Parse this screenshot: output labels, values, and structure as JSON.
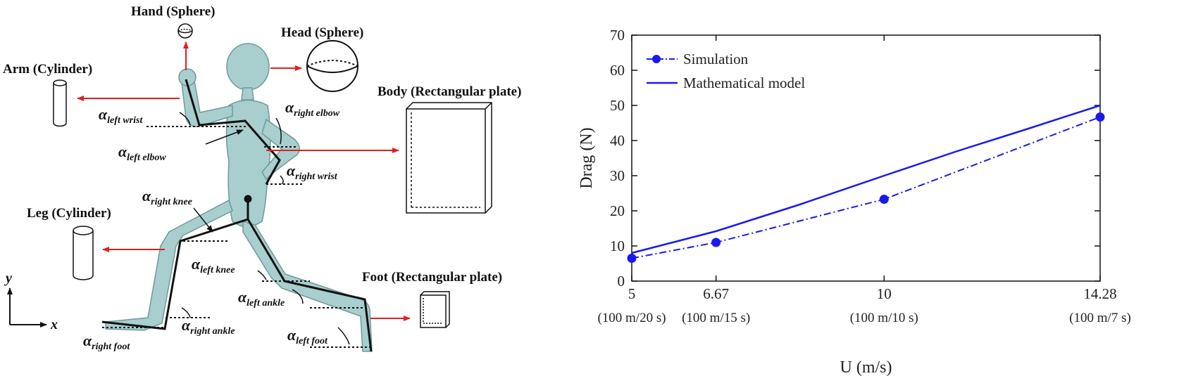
{
  "diagram": {
    "labels": {
      "hand": "Hand (Sphere)",
      "head": "Head (Sphere)",
      "arm": "Arm (Cylinder)",
      "body": "Body (Rectangular plate)",
      "leg": "Leg (Cylinder)",
      "foot": "Foot (Rectangular plate)"
    },
    "angles": {
      "left_wrist": {
        "sym": "α",
        "sub": "left wrist"
      },
      "right_elbow": {
        "sym": "α",
        "sub": "right elbow"
      },
      "left_elbow": {
        "sym": "α",
        "sub": "left elbow"
      },
      "right_wrist": {
        "sym": "α",
        "sub": "right wrist"
      },
      "right_knee": {
        "sym": "α",
        "sub": "right knee"
      },
      "left_knee": {
        "sym": "α",
        "sub": "left knee"
      },
      "left_ankle": {
        "sym": "α",
        "sub": "left ankle"
      },
      "right_ankle": {
        "sym": "α",
        "sub": "right ankle"
      },
      "right_foot": {
        "sym": "α",
        "sub": "right foot"
      },
      "left_foot": {
        "sym": "α",
        "sub": "left foot"
      }
    },
    "axes": {
      "y": "y",
      "x": "x"
    },
    "colors": {
      "arrow": "#e02020",
      "mannequin": "#a8cece",
      "mannequin_edge": "#6f9a9a"
    }
  },
  "chart_data": {
    "type": "line",
    "x": [
      5,
      6.67,
      10,
      14.28
    ],
    "xticklabels": [
      "5",
      "6.67",
      "10",
      "14.28"
    ],
    "xticksub": [
      "(100 m/20 s)",
      "(100 m/15 s)",
      "(100 m/10 s)",
      "(100 m/7 s)"
    ],
    "xlim": [
      5,
      14.28
    ],
    "ylim": [
      0,
      70
    ],
    "yticks": [
      0,
      10,
      20,
      30,
      40,
      50,
      60,
      70
    ],
    "xlabel": "U (m/s)",
    "ylabel": "Drag (N)",
    "grid": false,
    "legend_position": "top-left",
    "series": [
      {
        "name": "Simulation",
        "style": "dash-dot-markers",
        "color": "#1a1aee",
        "values": [
          6.5,
          11,
          23.3,
          46.7
        ]
      },
      {
        "name": "Mathematical model",
        "style": "solid",
        "color": "#1a1aee",
        "x": [
          5,
          6.67,
          8.33,
          10,
          11.43,
          12.86,
          14.28
        ],
        "values": [
          8,
          14.2,
          21.8,
          30,
          36.9,
          43.4,
          50
        ]
      }
    ]
  }
}
